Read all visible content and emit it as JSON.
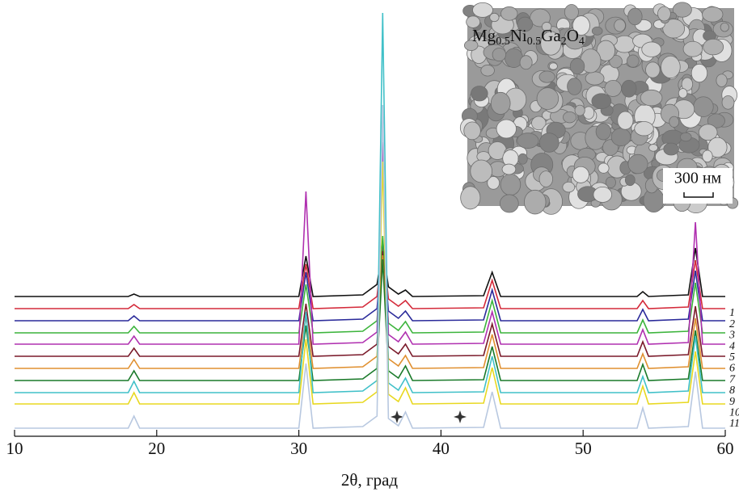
{
  "chart_data": {
    "type": "line",
    "x_label": "2θ, град",
    "x": [
      10,
      18.0,
      18.4,
      18.8,
      30.0,
      30.5,
      31.0,
      34.5,
      35.5,
      35.9,
      36.3,
      37.0,
      37.5,
      38.0,
      43.0,
      43.6,
      44.2,
      53.8,
      54.2,
      54.6,
      57.4,
      57.9,
      58.4,
      60
    ],
    "xlim": [
      10,
      60
    ],
    "xticks": [
      10,
      20,
      30,
      40,
      50,
      60
    ],
    "ylim": [
      0,
      530
    ],
    "series": [
      {
        "name": "1",
        "color": "#111111",
        "values": [
          173,
          173,
          176,
          173,
          173,
          223,
          173,
          175,
          188,
          233,
          185,
          176,
          181,
          173,
          174,
          203,
          173,
          173,
          179,
          173,
          175,
          233,
          173,
          173
        ]
      },
      {
        "name": "2",
        "color": "#d42a3a",
        "values": [
          158,
          158,
          163,
          158,
          158,
          213,
          158,
          160,
          173,
          238,
          170,
          161,
          168,
          158,
          159,
          193,
          158,
          158,
          168,
          158,
          160,
          218,
          158,
          158
        ]
      },
      {
        "name": "3",
        "color": "#2a2a9a",
        "values": [
          143,
          143,
          149,
          143,
          143,
          203,
          143,
          145,
          158,
          243,
          155,
          146,
          155,
          143,
          144,
          181,
          143,
          143,
          157,
          143,
          145,
          205,
          143,
          143
        ]
      },
      {
        "name": "4",
        "color": "#3cb43c",
        "values": [
          128,
          128,
          136,
          128,
          128,
          188,
          128,
          130,
          143,
          248,
          140,
          131,
          142,
          128,
          129,
          168,
          128,
          128,
          144,
          128,
          130,
          190,
          128,
          128
        ]
      },
      {
        "name": "5",
        "color": "#b030b0",
        "values": [
          114,
          114,
          124,
          114,
          114,
          303,
          114,
          116,
          129,
          364,
          126,
          117,
          129,
          114,
          115,
          154,
          114,
          114,
          132,
          114,
          116,
          265,
          114,
          114
        ]
      },
      {
        "name": "6",
        "color": "#7a1a2a",
        "values": [
          99,
          99,
          109,
          99,
          99,
          164,
          99,
          101,
          114,
          229,
          111,
          102,
          114,
          99,
          100,
          139,
          99,
          99,
          117,
          99,
          101,
          161,
          99,
          99
        ]
      },
      {
        "name": "7",
        "color": "#e09030",
        "values": [
          84,
          84,
          95,
          84,
          84,
          149,
          84,
          86,
          99,
          224,
          96,
          87,
          100,
          84,
          85,
          126,
          84,
          84,
          102,
          84,
          86,
          146,
          84,
          84
        ]
      },
      {
        "name": "8",
        "color": "#1a7a2a",
        "values": [
          69,
          69,
          81,
          69,
          69,
          137,
          69,
          71,
          84,
          219,
          81,
          72,
          87,
          69,
          70,
          111,
          69,
          69,
          89,
          69,
          71,
          131,
          69,
          69
        ]
      },
      {
        "name": "9",
        "color": "#40c0c8",
        "values": [
          54,
          54,
          68,
          54,
          54,
          154,
          54,
          56,
          69,
          524,
          66,
          57,
          72,
          54,
          55,
          99,
          54,
          54,
          74,
          54,
          56,
          124,
          54,
          54
        ]
      },
      {
        "name": "10",
        "color": "#e8d820",
        "values": [
          40,
          40,
          54,
          40,
          40,
          120,
          40,
          42,
          55,
          340,
          52,
          43,
          60,
          40,
          41,
          85,
          40,
          40,
          62,
          40,
          42,
          105,
          40,
          40
        ]
      },
      {
        "name": "11",
        "color": "#b8c8e0",
        "values": [
          10,
          10,
          25,
          10,
          10,
          90,
          10,
          12,
          25,
          410,
          22,
          13,
          30,
          10,
          11,
          55,
          10,
          10,
          35,
          10,
          12,
          80,
          10,
          10
        ]
      }
    ],
    "inset": {
      "formula": [
        "Mg",
        "0.5",
        "Ni",
        "0.5",
        "Ga",
        "2",
        "O",
        "4"
      ],
      "scale_bar": "300 нм"
    }
  }
}
